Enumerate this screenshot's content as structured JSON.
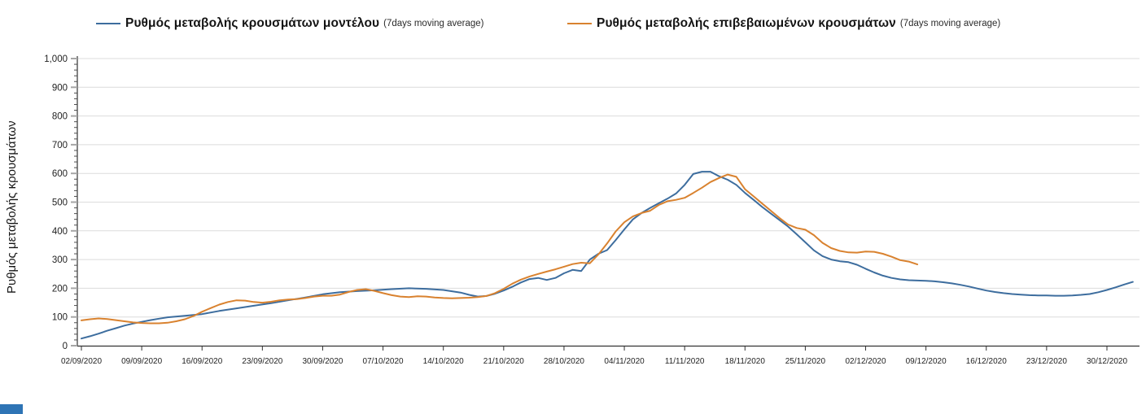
{
  "chart_data": {
    "type": "line",
    "title": "",
    "legend_position": "top",
    "grid": true,
    "x_unit": "days since 02/09/2020",
    "y_axis": {
      "title": "Ρυθμός μεταβολής κρουσμάτων",
      "min": 0,
      "max": 1000,
      "major_step": 100,
      "minor_step": 20,
      "tick_labels": [
        "0",
        "100",
        "200",
        "300",
        "400",
        "500",
        "600",
        "700",
        "800",
        "900",
        "1,000"
      ]
    },
    "x_axis": {
      "days_per_tick": 7,
      "tick_labels": [
        "02/09/2020",
        "09/09/2020",
        "16/09/2020",
        "23/09/2020",
        "30/09/2020",
        "07/10/2020",
        "14/10/2020",
        "21/10/2020",
        "28/10/2020",
        "04/11/2020",
        "11/11/2020",
        "18/11/2020",
        "25/11/2020",
        "02/12/2020",
        "09/12/2020",
        "16/12/2020",
        "23/12/2020",
        "30/12/2020"
      ]
    },
    "series": [
      {
        "name": "Ρυθμός μεταβολής κρουσμάτων μοντέλου",
        "sub": "(7days moving average)",
        "color": "#3d6d9e",
        "points": [
          [
            0,
            25
          ],
          [
            1,
            33
          ],
          [
            2,
            42
          ],
          [
            3,
            52
          ],
          [
            4,
            61
          ],
          [
            5,
            70
          ],
          [
            6,
            77
          ],
          [
            7,
            83
          ],
          [
            8,
            89
          ],
          [
            9,
            94
          ],
          [
            10,
            99
          ],
          [
            12,
            104
          ],
          [
            14,
            110
          ],
          [
            16,
            121
          ],
          [
            18,
            130
          ],
          [
            20,
            139
          ],
          [
            22,
            148
          ],
          [
            24,
            158
          ],
          [
            26,
            168
          ],
          [
            28,
            179
          ],
          [
            30,
            186
          ],
          [
            32,
            190
          ],
          [
            34,
            193
          ],
          [
            36,
            197
          ],
          [
            38,
            200
          ],
          [
            40,
            198
          ],
          [
            42,
            194
          ],
          [
            44,
            185
          ],
          [
            45,
            177
          ],
          [
            46,
            171
          ],
          [
            47,
            173
          ],
          [
            48,
            181
          ],
          [
            49,
            192
          ],
          [
            50,
            205
          ],
          [
            51,
            220
          ],
          [
            52,
            232
          ],
          [
            53,
            236
          ],
          [
            54,
            229
          ],
          [
            55,
            236
          ],
          [
            56,
            252
          ],
          [
            57,
            264
          ],
          [
            58,
            260
          ],
          [
            59,
            300
          ],
          [
            60,
            320
          ],
          [
            61,
            333
          ],
          [
            62,
            368
          ],
          [
            63,
            405
          ],
          [
            64,
            440
          ],
          [
            65,
            462
          ],
          [
            66,
            480
          ],
          [
            67,
            496
          ],
          [
            68,
            512
          ],
          [
            69,
            530
          ],
          [
            70,
            560
          ],
          [
            71,
            598
          ],
          [
            72,
            606
          ],
          [
            73,
            606
          ],
          [
            74,
            590
          ],
          [
            75,
            578
          ],
          [
            76,
            560
          ],
          [
            77,
            532
          ],
          [
            78,
            508
          ],
          [
            79,
            483
          ],
          [
            80,
            460
          ],
          [
            81,
            438
          ],
          [
            82,
            415
          ],
          [
            83,
            388
          ],
          [
            84,
            360
          ],
          [
            85,
            332
          ],
          [
            86,
            312
          ],
          [
            87,
            300
          ],
          [
            88,
            294
          ],
          [
            89,
            291
          ],
          [
            90,
            282
          ],
          [
            91,
            268
          ],
          [
            92,
            255
          ],
          [
            93,
            244
          ],
          [
            94,
            236
          ],
          [
            95,
            231
          ],
          [
            96,
            228
          ],
          [
            97,
            227
          ],
          [
            98,
            226
          ],
          [
            99,
            224
          ],
          [
            100,
            221
          ],
          [
            101,
            217
          ],
          [
            102,
            212
          ],
          [
            103,
            206
          ],
          [
            104,
            199
          ],
          [
            105,
            192
          ],
          [
            106,
            187
          ],
          [
            107,
            183
          ],
          [
            108,
            180
          ],
          [
            109,
            178
          ],
          [
            110,
            176
          ],
          [
            111,
            175
          ],
          [
            112,
            175
          ],
          [
            113,
            174
          ],
          [
            114,
            174
          ],
          [
            115,
            175
          ],
          [
            116,
            177
          ],
          [
            117,
            180
          ],
          [
            118,
            186
          ],
          [
            119,
            194
          ],
          [
            120,
            203
          ],
          [
            121,
            213
          ],
          [
            122,
            222
          ]
        ]
      },
      {
        "name": "Ρυθμός μεταβολής επιβεβαιωμένων κρουσμάτων",
        "sub": "(7days moving average)",
        "color": "#d9822f",
        "points": [
          [
            0,
            88
          ],
          [
            1,
            92
          ],
          [
            2,
            95
          ],
          [
            3,
            93
          ],
          [
            4,
            89
          ],
          [
            5,
            85
          ],
          [
            6,
            81
          ],
          [
            7,
            79
          ],
          [
            8,
            78
          ],
          [
            9,
            78
          ],
          [
            10,
            80
          ],
          [
            11,
            85
          ],
          [
            12,
            92
          ],
          [
            13,
            103
          ],
          [
            14,
            118
          ],
          [
            15,
            131
          ],
          [
            16,
            143
          ],
          [
            17,
            152
          ],
          [
            18,
            158
          ],
          [
            19,
            157
          ],
          [
            20,
            152
          ],
          [
            21,
            150
          ],
          [
            22,
            153
          ],
          [
            23,
            158
          ],
          [
            24,
            161
          ],
          [
            25,
            162
          ],
          [
            26,
            166
          ],
          [
            27,
            171
          ],
          [
            28,
            174
          ],
          [
            29,
            174
          ],
          [
            30,
            178
          ],
          [
            31,
            187
          ],
          [
            32,
            194
          ],
          [
            33,
            197
          ],
          [
            34,
            191
          ],
          [
            35,
            183
          ],
          [
            36,
            176
          ],
          [
            37,
            171
          ],
          [
            38,
            169
          ],
          [
            39,
            172
          ],
          [
            40,
            171
          ],
          [
            41,
            168
          ],
          [
            42,
            166
          ],
          [
            43,
            165
          ],
          [
            44,
            166
          ],
          [
            45,
            167
          ],
          [
            46,
            169
          ],
          [
            47,
            173
          ],
          [
            48,
            183
          ],
          [
            49,
            198
          ],
          [
            50,
            216
          ],
          [
            51,
            230
          ],
          [
            52,
            241
          ],
          [
            53,
            250
          ],
          [
            54,
            258
          ],
          [
            55,
            266
          ],
          [
            56,
            275
          ],
          [
            57,
            284
          ],
          [
            58,
            289
          ],
          [
            59,
            287
          ],
          [
            60,
            318
          ],
          [
            61,
            356
          ],
          [
            62,
            398
          ],
          [
            63,
            430
          ],
          [
            64,
            450
          ],
          [
            65,
            462
          ],
          [
            66,
            470
          ],
          [
            67,
            490
          ],
          [
            68,
            503
          ],
          [
            69,
            508
          ],
          [
            70,
            515
          ],
          [
            71,
            532
          ],
          [
            72,
            550
          ],
          [
            73,
            570
          ],
          [
            74,
            584
          ],
          [
            75,
            596
          ],
          [
            76,
            588
          ],
          [
            77,
            545
          ],
          [
            78,
            520
          ],
          [
            79,
            495
          ],
          [
            80,
            470
          ],
          [
            81,
            445
          ],
          [
            82,
            422
          ],
          [
            83,
            410
          ],
          [
            84,
            404
          ],
          [
            85,
            385
          ],
          [
            86,
            358
          ],
          [
            87,
            340
          ],
          [
            88,
            330
          ],
          [
            89,
            325
          ],
          [
            90,
            324
          ],
          [
            91,
            328
          ],
          [
            92,
            327
          ],
          [
            93,
            320
          ],
          [
            94,
            310
          ],
          [
            95,
            298
          ],
          [
            96,
            293
          ],
          [
            97,
            283
          ]
        ]
      }
    ]
  },
  "decor": {
    "corner_chip_color": "#2e74b5"
  }
}
